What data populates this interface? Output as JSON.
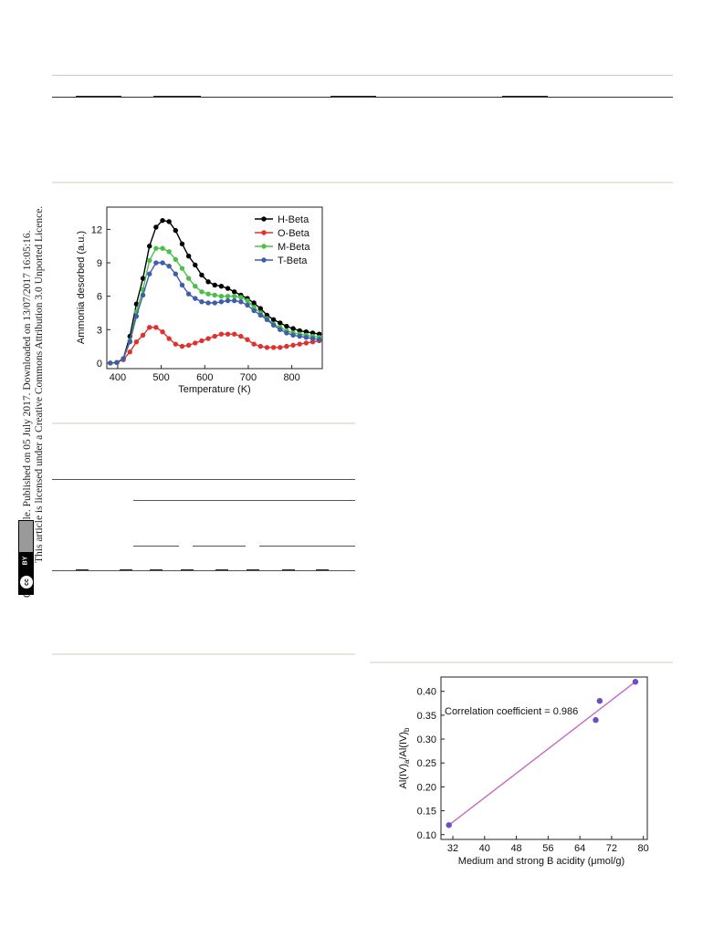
{
  "sidebar": {
    "line1": "Open Access Article. Published on 05 July 2017. Downloaded on 13/07/2017 16:05:16.",
    "line2": "This article is licensed under a Creative Commons Attribution 3.0 Unported Licence.",
    "badge_cc": "cc",
    "badge_by": "BY"
  },
  "chart_data": [
    {
      "type": "line",
      "title": "",
      "xlabel": "Temperature (K)",
      "ylabel": "Ammonia desorbed (a.u.)",
      "xlim": [
        375,
        870
      ],
      "ylim": [
        -0.5,
        14
      ],
      "xticks": [
        400,
        500,
        600,
        700,
        800
      ],
      "yticks": [
        0,
        3,
        6,
        9,
        12
      ],
      "legend_position": "top-right",
      "grid": false,
      "series": [
        {
          "name": "H-Beta",
          "color": "#000000",
          "x": [
            383,
            398,
            413,
            428,
            443,
            458,
            473,
            488,
            503,
            518,
            533,
            548,
            563,
            578,
            593,
            608,
            623,
            638,
            653,
            668,
            683,
            698,
            713,
            728,
            743,
            758,
            773,
            788,
            803,
            818,
            833,
            848,
            863
          ],
          "y": [
            0,
            0.05,
            0.4,
            2.4,
            5.3,
            7.6,
            10.5,
            12.2,
            12.8,
            12.7,
            11.9,
            10.7,
            9.6,
            8.8,
            7.9,
            7.3,
            7.0,
            6.9,
            6.7,
            6.4,
            6.1,
            5.8,
            5.4,
            4.9,
            4.3,
            3.9,
            3.6,
            3.3,
            3.1,
            2.9,
            2.8,
            2.7,
            2.6
          ]
        },
        {
          "name": "O-Beta",
          "color": "#e0322c",
          "x": [
            383,
            398,
            413,
            428,
            443,
            458,
            473,
            488,
            503,
            518,
            533,
            548,
            563,
            578,
            593,
            608,
            623,
            638,
            653,
            668,
            683,
            698,
            713,
            728,
            743,
            758,
            773,
            788,
            803,
            818,
            833,
            848,
            863
          ],
          "y": [
            0,
            0.05,
            0.3,
            1.0,
            1.9,
            2.5,
            3.2,
            3.2,
            2.8,
            2.2,
            1.7,
            1.5,
            1.6,
            1.8,
            2.0,
            2.2,
            2.4,
            2.6,
            2.6,
            2.6,
            2.4,
            2.1,
            1.7,
            1.5,
            1.4,
            1.4,
            1.4,
            1.5,
            1.6,
            1.7,
            1.8,
            1.9,
            2.0
          ]
        },
        {
          "name": "M-Beta",
          "color": "#4cbf4a",
          "x": [
            383,
            398,
            413,
            428,
            443,
            458,
            473,
            488,
            503,
            518,
            533,
            548,
            563,
            578,
            593,
            608,
            623,
            638,
            653,
            668,
            683,
            698,
            713,
            728,
            743,
            758,
            773,
            788,
            803,
            818,
            833,
            848,
            863
          ],
          "y": [
            0,
            0.05,
            0.4,
            2.0,
            4.6,
            6.6,
            9.2,
            10.3,
            10.3,
            10.0,
            9.3,
            8.5,
            7.6,
            6.9,
            6.4,
            6.2,
            6.1,
            6.0,
            6.0,
            6.0,
            5.9,
            5.6,
            5.0,
            4.5,
            4.0,
            3.5,
            3.2,
            2.9,
            2.7,
            2.6,
            2.5,
            2.4,
            2.3
          ]
        },
        {
          "name": "T-Beta",
          "color": "#3e5dab",
          "x": [
            383,
            398,
            413,
            428,
            443,
            458,
            473,
            488,
            503,
            518,
            533,
            548,
            563,
            578,
            593,
            608,
            623,
            638,
            653,
            668,
            683,
            698,
            713,
            728,
            743,
            758,
            773,
            788,
            803,
            818,
            833,
            848,
            863
          ],
          "y": [
            0,
            0.05,
            0.4,
            1.9,
            4.2,
            6.1,
            8.0,
            9.0,
            9.0,
            8.7,
            8.0,
            7.0,
            6.2,
            5.8,
            5.5,
            5.4,
            5.4,
            5.5,
            5.6,
            5.6,
            5.5,
            5.2,
            4.7,
            4.3,
            3.9,
            3.4,
            3.0,
            2.7,
            2.5,
            2.4,
            2.3,
            2.2,
            2.1
          ]
        }
      ]
    },
    {
      "type": "scatter",
      "title": "",
      "xlabel": "Medium and strong B acidity (μmol/g)",
      "ylabel": "Al(IV)a/Al(IV)b",
      "xlim": [
        29,
        81
      ],
      "ylim": [
        0.09,
        0.43
      ],
      "xticks": [
        32,
        40,
        48,
        56,
        64,
        72,
        80
      ],
      "yticks": [
        0.1,
        0.15,
        0.2,
        0.25,
        0.3,
        0.35,
        0.4
      ],
      "annotation": "Correlation coefficient = 0.986",
      "grid": false,
      "points": {
        "x": [
          31,
          68,
          69,
          78
        ],
        "y": [
          0.12,
          0.34,
          0.38,
          0.42
        ]
      },
      "fit_line": {
        "x": [
          31,
          78
        ],
        "y": [
          0.12,
          0.42
        ]
      },
      "point_color": "#6a4fc4",
      "line_color": "#c569c0"
    }
  ]
}
